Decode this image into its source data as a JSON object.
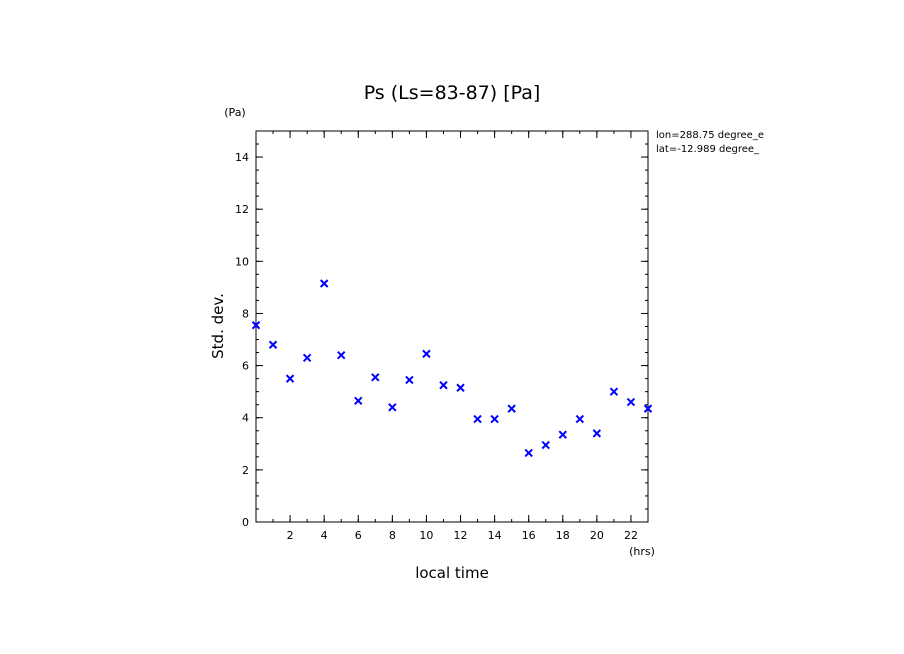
{
  "chart_data": {
    "type": "scatter",
    "title": "Ps (Ls=83-87) [Pa]",
    "xlabel": "local time",
    "ylabel": "Std. dev.",
    "x_unit": "(hrs)",
    "y_unit": "(Pa)",
    "xlim": [
      0,
      23
    ],
    "ylim": [
      0,
      15
    ],
    "xticks": [
      2,
      4,
      6,
      8,
      10,
      12,
      14,
      16,
      18,
      20,
      22
    ],
    "yticks": [
      0,
      2,
      4,
      6,
      8,
      10,
      12,
      14
    ],
    "marker": "x",
    "marker_color": "#0000ff",
    "annotations": [
      "lon=288.75 degree_e",
      "lat=-12.989 degree_"
    ],
    "x": [
      0,
      1,
      2,
      3,
      4,
      5,
      6,
      7,
      8,
      9,
      10,
      11,
      12,
      13,
      14,
      15,
      16,
      17,
      18,
      19,
      20,
      21,
      22,
      23
    ],
    "y": [
      7.55,
      6.8,
      5.5,
      6.3,
      9.15,
      6.4,
      4.65,
      5.55,
      4.4,
      5.45,
      6.45,
      5.25,
      5.15,
      3.95,
      3.95,
      4.35,
      2.65,
      2.95,
      3.35,
      3.95,
      3.4,
      5.0,
      4.6,
      4.35
    ]
  }
}
